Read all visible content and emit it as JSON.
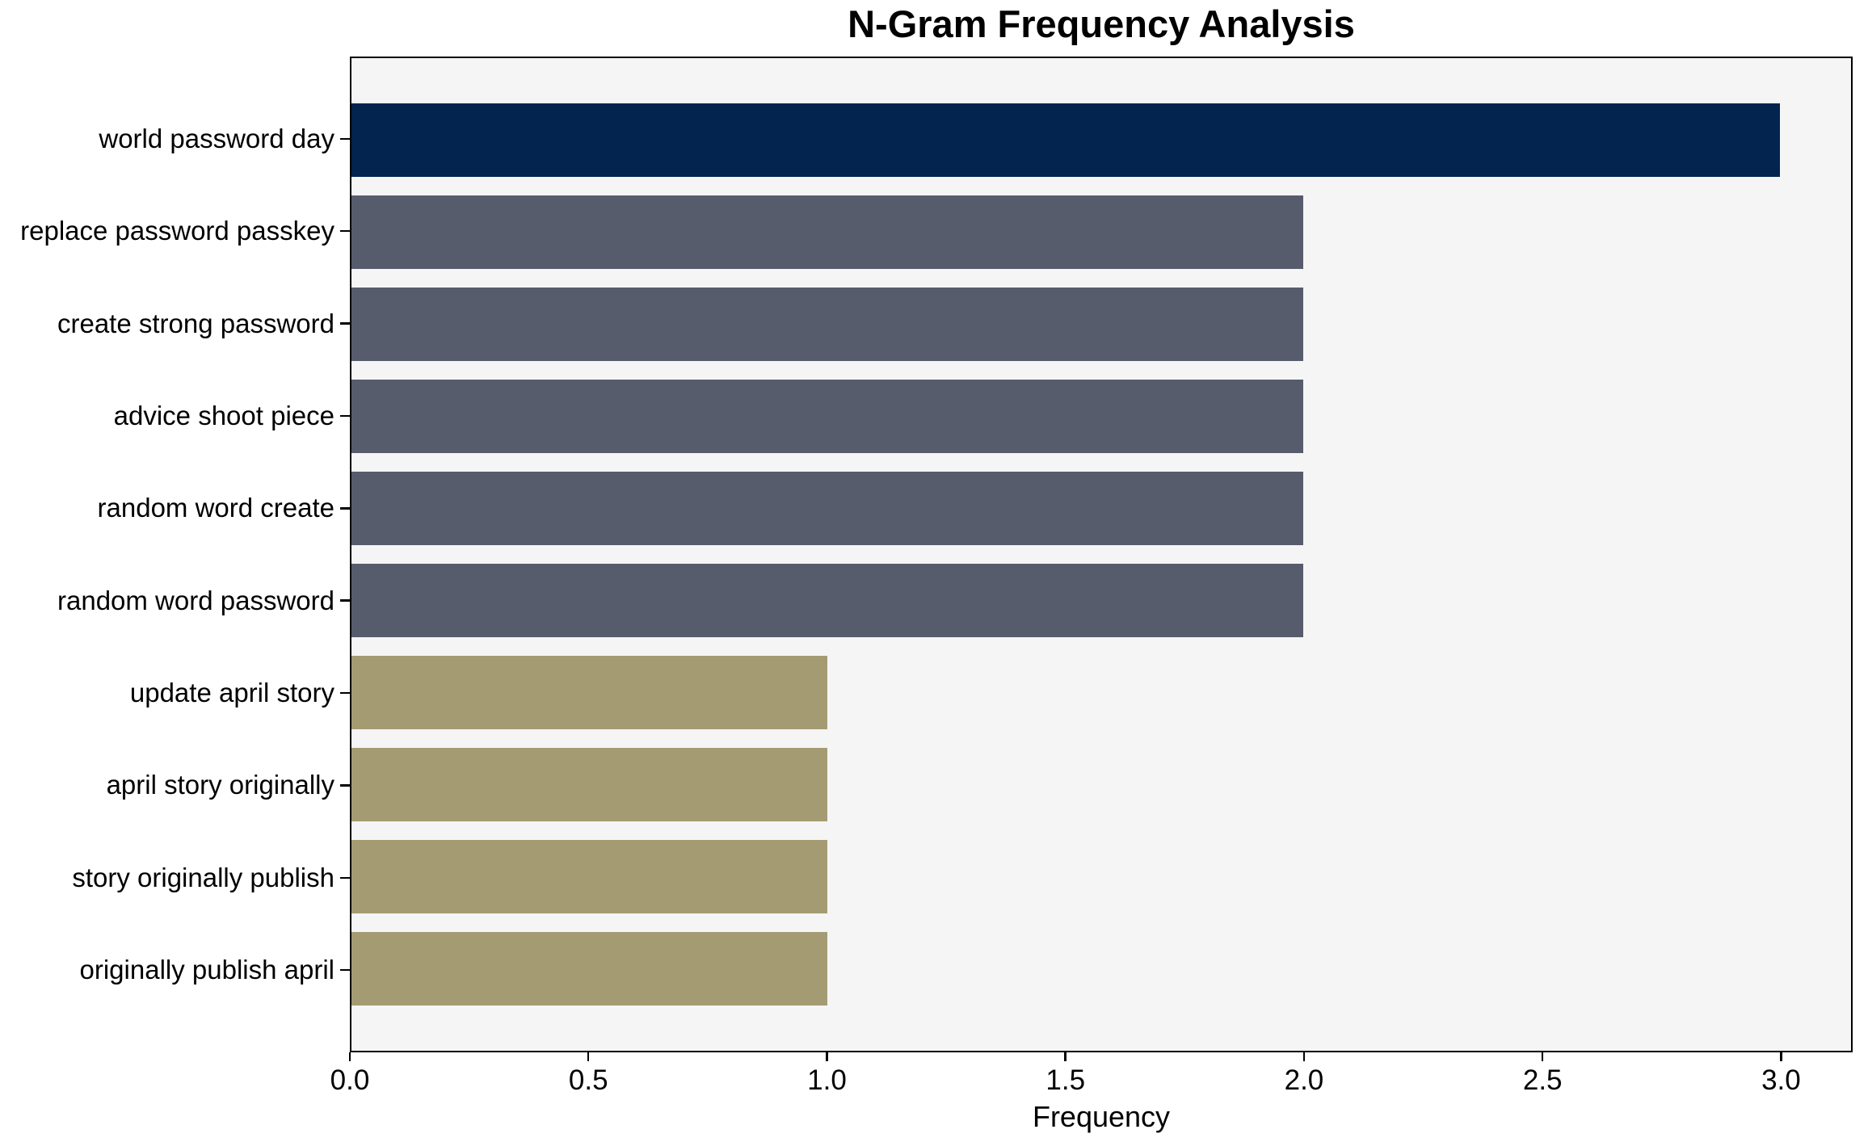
{
  "chart_data": {
    "type": "bar",
    "orientation": "horizontal",
    "title": "N-Gram Frequency Analysis",
    "xlabel": "Frequency",
    "ylabel": "",
    "categories": [
      "world password day",
      "replace password passkey",
      "create strong password",
      "advice shoot piece",
      "random word create",
      "random word password",
      "update april story",
      "april story originally",
      "story originally publish",
      "originally publish april"
    ],
    "values": [
      3,
      2,
      2,
      2,
      2,
      2,
      1,
      1,
      1,
      1
    ],
    "bar_colors": [
      "#02244e",
      "#565c6c",
      "#565c6c",
      "#565c6c",
      "#565c6c",
      "#565c6c",
      "#a49b72",
      "#a49b72",
      "#a49b72",
      "#a49b72"
    ],
    "xlim": [
      0,
      3.15
    ],
    "xticks": [
      0.0,
      0.5,
      1.0,
      1.5,
      2.0,
      2.5,
      3.0
    ],
    "xtick_labels": [
      "0.0",
      "0.5",
      "1.0",
      "1.5",
      "2.0",
      "2.5",
      "3.0"
    ],
    "grid": false,
    "legend": "none",
    "plot_background": "#f5f5f6",
    "figure_background": "#ffffff",
    "axis_color": "#000000",
    "bar_band_ratio": 0.8
  }
}
